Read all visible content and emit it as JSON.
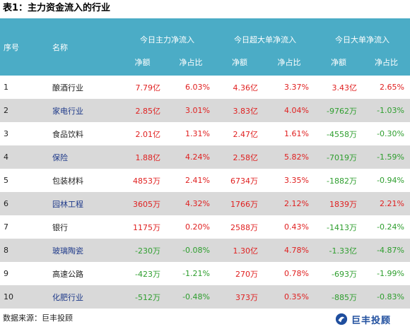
{
  "title": "表1：主力资金流入的行业",
  "header": {
    "index": "序号",
    "name": "名称",
    "groups": [
      "今日主力净流入",
      "今日超大单净流入",
      "今日大单净流入"
    ],
    "sub": [
      "净额",
      "净占比"
    ]
  },
  "rows": [
    {
      "idx": "1",
      "name": "酿酒行业",
      "v": [
        "7.79亿",
        "6.03%",
        "4.36亿",
        "3.37%",
        "3.43亿",
        "2.65%"
      ]
    },
    {
      "idx": "2",
      "name": "家电行业",
      "v": [
        "2.85亿",
        "3.01%",
        "3.83亿",
        "4.04%",
        "-9762万",
        "-1.03%"
      ]
    },
    {
      "idx": "3",
      "name": "食品饮料",
      "v": [
        "2.01亿",
        "1.31%",
        "2.47亿",
        "1.61%",
        "-4558万",
        "-0.30%"
      ]
    },
    {
      "idx": "4",
      "name": "保险",
      "v": [
        "1.88亿",
        "4.24%",
        "2.58亿",
        "5.82%",
        "-7019万",
        "-1.59%"
      ]
    },
    {
      "idx": "5",
      "name": "包装材料",
      "v": [
        "4853万",
        "2.41%",
        "6734万",
        "3.35%",
        "-1882万",
        "-0.94%"
      ]
    },
    {
      "idx": "6",
      "name": "园林工程",
      "v": [
        "3605万",
        "4.32%",
        "1766万",
        "2.12%",
        "1839万",
        "2.21%"
      ]
    },
    {
      "idx": "7",
      "name": "银行",
      "v": [
        "1175万",
        "0.20%",
        "2588万",
        "0.43%",
        "-1413万",
        "-0.24%"
      ]
    },
    {
      "idx": "8",
      "name": "玻璃陶瓷",
      "v": [
        "-230万",
        "-0.08%",
        "1.30亿",
        "4.78%",
        "-1.33亿",
        "-4.87%"
      ]
    },
    {
      "idx": "9",
      "name": "高速公路",
      "v": [
        "-423万",
        "-1.21%",
        "270万",
        "0.78%",
        "-693万",
        "-1.99%"
      ]
    },
    {
      "idx": "10",
      "name": "化肥行业",
      "v": [
        "-512万",
        "-0.48%",
        "373万",
        "0.35%",
        "-885万",
        "-0.83%"
      ]
    }
  ],
  "footer": "数据来源：巨丰投顾",
  "logo_text": "巨丰投顾",
  "colors": {
    "header_bg": "#4bacc6",
    "positive": "#e02020",
    "negative": "#2e9e2e",
    "stripe": "#d9d9d9"
  }
}
